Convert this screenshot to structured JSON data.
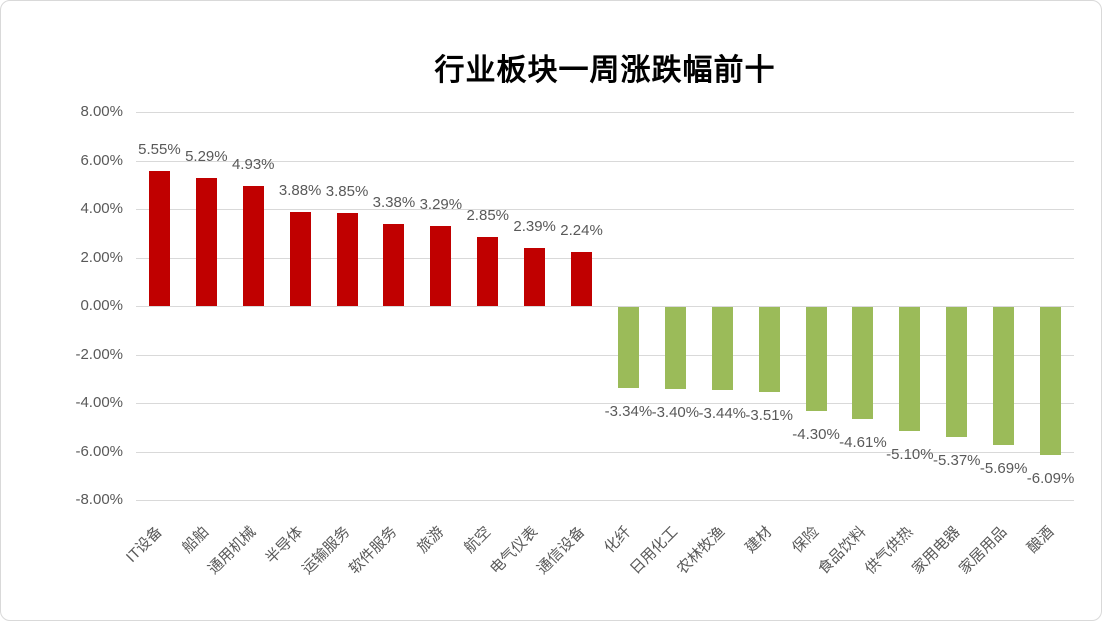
{
  "chart_data": {
    "type": "bar",
    "title": "行业板块一周涨跌幅前十",
    "categories": [
      "IT设备",
      "船舶",
      "通用机械",
      "半导体",
      "运输服务",
      "软件服务",
      "旅游",
      "航空",
      "电气仪表",
      "通信设备",
      "化纤",
      "日用化工",
      "农林牧渔",
      "建材",
      "保险",
      "食品饮料",
      "供气供热",
      "家用电器",
      "家居用品",
      "酿酒"
    ],
    "values": [
      5.55,
      5.29,
      4.93,
      3.88,
      3.85,
      3.38,
      3.29,
      2.85,
      2.39,
      2.24,
      -3.34,
      -3.4,
      -3.44,
      -3.51,
      -4.3,
      -4.61,
      -5.1,
      -5.37,
      -5.69,
      -6.09
    ],
    "data_labels": [
      "5.55%",
      "5.29%",
      "4.93%",
      "3.88%",
      "3.85%",
      "3.38%",
      "3.29%",
      "2.85%",
      "2.39%",
      "2.24%",
      "-3.34%",
      "-3.40%",
      "-3.44%",
      "-3.51%",
      "-4.30%",
      "-4.61%",
      "-5.10%",
      "-5.37%",
      "-5.69%",
      "-6.09%"
    ],
    "xlabel": "",
    "ylabel": "",
    "ylim": [
      -8,
      8
    ],
    "y_tick_labels": [
      "8.00%",
      "6.00%",
      "4.00%",
      "2.00%",
      "0.00%",
      "-2.00%",
      "-4.00%",
      "-6.00%",
      "-8.00%"
    ],
    "y_tick_values": [
      8,
      6,
      4,
      2,
      0,
      -2,
      -4,
      -6,
      -8
    ],
    "grid": true,
    "legend": "none",
    "data_label_position": "outside-end",
    "category_label_rotation_deg": 45,
    "colors": {
      "positive_bar": "#c00000",
      "negative_bar": "#9bbb59",
      "label_text": "#595959",
      "gridline": "#d9d9d9",
      "title_text": "#000000"
    }
  }
}
